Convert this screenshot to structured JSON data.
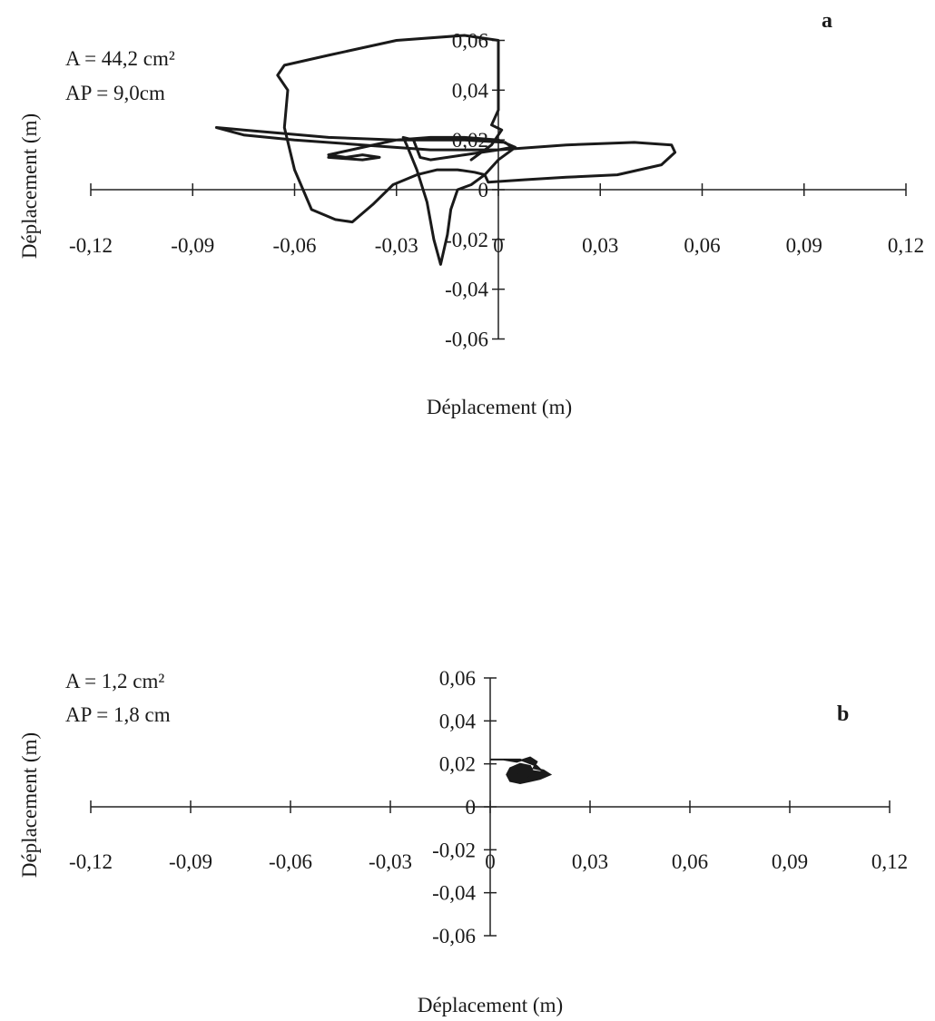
{
  "chart_data": [
    {
      "type": "line",
      "panel_label": "a",
      "annotations": [
        "A = 44,2 cm²",
        "AP = 9,0cm"
      ],
      "xlabel": "Déplacement (m)",
      "ylabel": "Déplacement (m)",
      "xlim": [
        -0.12,
        0.12
      ],
      "ylim": [
        -0.06,
        0.06
      ],
      "x_ticks": [
        "-0,12",
        "-0,09",
        "-0,06",
        "-0,03",
        "0",
        "0,03",
        "0,06",
        "0,09",
        "0,12"
      ],
      "y_ticks": [
        "0,06",
        "0,04",
        "0,02",
        "0",
        "-0,02",
        "-0,04",
        "-0,06"
      ],
      "grid": false,
      "series": [
        {
          "points": [
            [
              -0.008,
              0.012
            ],
            [
              -0.002,
              0.018
            ],
            [
              0.001,
              0.024
            ],
            [
              -0.002,
              0.026
            ],
            [
              0.0,
              0.032
            ],
            [
              0.0,
              0.048
            ],
            [
              0.0,
              0.06
            ],
            [
              -0.01,
              0.062
            ],
            [
              -0.03,
              0.06
            ],
            [
              -0.05,
              0.054
            ],
            [
              -0.063,
              0.05
            ],
            [
              -0.065,
              0.046
            ],
            [
              -0.062,
              0.04
            ],
            [
              -0.063,
              0.025
            ],
            [
              -0.06,
              0.008
            ],
            [
              -0.055,
              -0.008
            ],
            [
              -0.048,
              -0.012
            ],
            [
              -0.043,
              -0.013
            ],
            [
              -0.037,
              -0.006
            ],
            [
              -0.031,
              0.002
            ],
            [
              -0.024,
              0.006
            ],
            [
              -0.018,
              0.008
            ],
            [
              -0.012,
              0.008
            ],
            [
              -0.007,
              0.007
            ],
            [
              -0.004,
              0.006
            ],
            [
              -0.008,
              0.002
            ],
            [
              -0.012,
              0.0
            ],
            [
              -0.014,
              -0.008
            ],
            [
              -0.015,
              -0.018
            ],
            [
              -0.017,
              -0.03
            ],
            [
              -0.019,
              -0.02
            ],
            [
              -0.021,
              -0.005
            ],
            [
              -0.024,
              0.008
            ],
            [
              -0.027,
              0.018
            ],
            [
              -0.028,
              0.021
            ],
            [
              -0.025,
              0.02
            ],
            [
              -0.023,
              0.013
            ],
            [
              -0.02,
              0.012
            ],
            [
              -0.01,
              0.014
            ],
            [
              0.0,
              0.016
            ],
            [
              0.004,
              0.017
            ],
            [
              0.002,
              0.019
            ],
            [
              -0.01,
              0.02
            ],
            [
              -0.03,
              0.02
            ],
            [
              -0.05,
              0.021
            ],
            [
              -0.075,
              0.024
            ],
            [
              -0.083,
              0.025
            ],
            [
              -0.075,
              0.022
            ],
            [
              -0.06,
              0.02
            ],
            [
              -0.04,
              0.018
            ],
            [
              -0.02,
              0.016
            ],
            [
              0.0,
              0.016
            ],
            [
              0.02,
              0.018
            ],
            [
              0.04,
              0.019
            ],
            [
              0.051,
              0.018
            ],
            [
              0.052,
              0.015
            ],
            [
              0.048,
              0.01
            ],
            [
              0.035,
              0.006
            ],
            [
              0.02,
              0.005
            ],
            [
              0.008,
              0.004
            ],
            [
              -0.003,
              0.003
            ],
            [
              -0.004,
              0.006
            ],
            [
              0.0,
              0.012
            ],
            [
              0.005,
              0.017
            ],
            [
              0.0,
              0.02
            ],
            [
              -0.01,
              0.021
            ],
            [
              -0.02,
              0.021
            ],
            [
              -0.03,
              0.02
            ],
            [
              -0.04,
              0.017
            ],
            [
              -0.05,
              0.014
            ],
            [
              -0.045,
              0.013
            ],
            [
              -0.04,
              0.014
            ],
            [
              -0.035,
              0.013
            ],
            [
              -0.04,
              0.012
            ],
            [
              -0.05,
              0.013
            ]
          ]
        }
      ]
    },
    {
      "type": "line",
      "panel_label": "b",
      "annotations": [
        "A = 1,2 cm²",
        "AP = 1,8 cm"
      ],
      "xlabel": "Déplacement (m)",
      "ylabel": "Déplacement (m)",
      "xlim": [
        -0.12,
        0.12
      ],
      "ylim": [
        -0.06,
        0.06
      ],
      "x_ticks": [
        "-0,12",
        "-0,09",
        "-0,06",
        "-0,03",
        "0",
        "0,03",
        "0,06",
        "0,09",
        "0,12"
      ],
      "y_ticks": [
        "0,06",
        "0,04",
        "0,02",
        "0",
        "-0,02",
        "-0,04",
        "-0,06"
      ],
      "grid": false,
      "series": [
        {
          "points": [
            [
              0.0,
              0.022
            ],
            [
              0.004,
              0.022
            ],
            [
              0.008,
              0.021
            ],
            [
              0.012,
              0.023
            ],
            [
              0.014,
              0.021
            ],
            [
              0.013,
              0.018
            ],
            [
              0.016,
              0.017
            ],
            [
              0.018,
              0.015
            ],
            [
              0.015,
              0.013
            ],
            [
              0.012,
              0.012
            ],
            [
              0.009,
              0.011
            ],
            [
              0.006,
              0.012
            ],
            [
              0.005,
              0.015
            ],
            [
              0.006,
              0.018
            ],
            [
              0.009,
              0.02
            ],
            [
              0.012,
              0.019
            ],
            [
              0.013,
              0.016
            ],
            [
              0.011,
              0.014
            ],
            [
              0.008,
              0.015
            ],
            [
              0.008,
              0.018
            ],
            [
              0.011,
              0.017
            ],
            [
              0.016,
              0.016
            ],
            [
              0.014,
              0.019
            ],
            [
              0.009,
              0.022
            ]
          ],
          "filled_blob": true
        }
      ]
    }
  ]
}
